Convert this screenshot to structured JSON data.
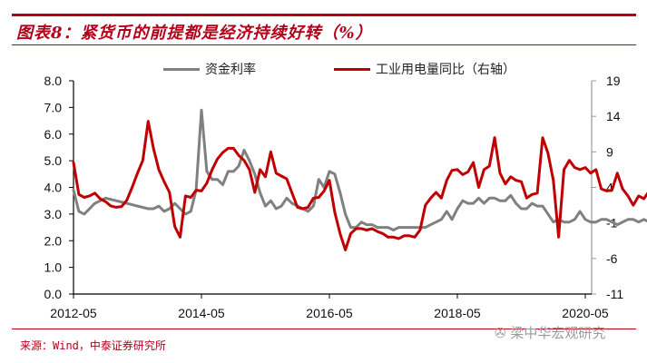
{
  "header": {
    "title": "图表8：紧货币的前提都是经济持续好转（%）"
  },
  "footer": {
    "source": "来源：Wind，中泰证券研究所",
    "watermark": "梁中华宏观研究"
  },
  "colors": {
    "brand": "#b3001b",
    "series_gray": "#808080",
    "series_red": "#c00000"
  },
  "chart_data": {
    "type": "line",
    "title": "紧货币的前提都是经济持续好转（%）",
    "xlabel": "",
    "x_ticks": [
      "2012-05",
      "2014-05",
      "2016-05",
      "2018-05",
      "2020-05"
    ],
    "x_start": "2012-05",
    "x_months": 96,
    "y_left": {
      "label": "",
      "ticks": [
        "8.0",
        "7.0",
        "6.0",
        "5.0",
        "4.0",
        "3.0",
        "2.0",
        "1.0",
        "0.0"
      ],
      "min": 0,
      "max": 8
    },
    "y_right": {
      "label": "右轴",
      "ticks": [
        "19",
        "14",
        "9",
        "4",
        "-1",
        "-6",
        "-11"
      ],
      "min": -11,
      "max": 19
    },
    "legend_position": "top",
    "grid": false,
    "series": [
      {
        "name": "资金利率",
        "axis": "left",
        "color": "#808080",
        "points": [
          [
            0,
            3.9
          ],
          [
            1,
            3.1
          ],
          [
            2,
            3.0
          ],
          [
            4,
            3.4
          ],
          [
            6,
            3.6
          ],
          [
            8,
            3.5
          ],
          [
            10,
            3.4
          ],
          [
            12,
            3.3
          ],
          [
            14,
            3.2
          ],
          [
            15,
            3.2
          ],
          [
            16,
            3.3
          ],
          [
            17,
            3.1
          ],
          [
            18,
            3.2
          ],
          [
            19,
            3.4
          ],
          [
            20,
            3.2
          ],
          [
            21,
            3.0
          ],
          [
            22,
            3.1
          ],
          [
            23,
            3.9
          ],
          [
            24,
            6.9
          ],
          [
            25,
            4.6
          ],
          [
            26,
            4.3
          ],
          [
            27,
            4.3
          ],
          [
            28,
            4.1
          ],
          [
            29,
            4.6
          ],
          [
            30,
            4.6
          ],
          [
            31,
            4.8
          ],
          [
            32,
            5.4
          ],
          [
            33,
            5.0
          ],
          [
            34,
            4.5
          ],
          [
            35,
            3.8
          ],
          [
            36,
            3.3
          ],
          [
            37,
            3.5
          ],
          [
            38,
            3.2
          ],
          [
            39,
            3.3
          ],
          [
            40,
            3.6
          ],
          [
            41,
            3.4
          ],
          [
            42,
            3.3
          ],
          [
            43,
            3.2
          ],
          [
            44,
            3.1
          ],
          [
            45,
            3.3
          ],
          [
            46,
            4.3
          ],
          [
            47,
            4.0
          ],
          [
            48,
            4.6
          ],
          [
            49,
            4.5
          ],
          [
            50,
            3.8
          ],
          [
            51,
            3.0
          ],
          [
            52,
            2.5
          ],
          [
            53,
            2.5
          ],
          [
            54,
            2.7
          ],
          [
            55,
            2.6
          ],
          [
            56,
            2.6
          ],
          [
            57,
            2.5
          ],
          [
            58,
            2.5
          ],
          [
            59,
            2.5
          ],
          [
            60,
            2.4
          ],
          [
            61,
            2.5
          ],
          [
            62,
            2.5
          ],
          [
            63,
            2.5
          ],
          [
            64,
            2.5
          ],
          [
            66,
            2.5
          ],
          [
            67,
            2.6
          ],
          [
            68,
            2.7
          ],
          [
            69,
            2.8
          ],
          [
            70,
            3.1
          ],
          [
            71,
            2.8
          ],
          [
            72,
            3.2
          ],
          [
            73,
            3.5
          ],
          [
            74,
            3.4
          ],
          [
            75,
            3.4
          ],
          [
            76,
            3.6
          ],
          [
            77,
            3.4
          ],
          [
            78,
            3.6
          ],
          [
            79,
            3.6
          ],
          [
            80,
            3.5
          ],
          [
            81,
            3.5
          ],
          [
            82,
            3.7
          ],
          [
            83,
            3.4
          ],
          [
            84,
            3.2
          ],
          [
            85,
            3.2
          ],
          [
            86,
            3.4
          ],
          [
            87,
            3.3
          ],
          [
            88,
            3.3
          ],
          [
            89,
            3.0
          ],
          [
            90,
            2.7
          ],
          [
            91,
            2.8
          ],
          [
            92,
            2.7
          ],
          [
            93,
            2.7
          ],
          [
            94,
            2.8
          ],
          [
            95,
            3.1
          ],
          [
            96,
            2.8
          ],
          [
            97,
            2.7
          ],
          [
            98,
            2.7
          ],
          [
            99,
            2.8
          ],
          [
            100,
            2.8
          ],
          [
            101,
            2.7
          ],
          [
            102,
            2.6
          ],
          [
            103,
            2.7
          ],
          [
            104,
            2.8
          ],
          [
            105,
            2.8
          ],
          [
            106,
            2.7
          ],
          [
            107,
            2.8
          ],
          [
            108,
            2.7
          ],
          [
            109,
            2.6
          ],
          [
            110,
            2.7
          ],
          [
            111,
            2.6
          ],
          [
            112,
            2.3
          ],
          [
            113,
            1.9
          ],
          [
            114,
            1.6
          ],
          [
            115,
            1.6
          ]
        ]
      },
      {
        "name": "工业用电量同比（右轴）",
        "axis": "right",
        "color": "#c00000",
        "points": [
          [
            0,
            7.5
          ],
          [
            1,
            3.0
          ],
          [
            2,
            2.6
          ],
          [
            3,
            2.8
          ],
          [
            4,
            3.2
          ],
          [
            5,
            2.4
          ],
          [
            6,
            2.0
          ],
          [
            7,
            1.4
          ],
          [
            8,
            1.2
          ],
          [
            9,
            1.3
          ],
          [
            10,
            2.2
          ],
          [
            11,
            4.0
          ],
          [
            12,
            6.0
          ],
          [
            13,
            7.8
          ],
          [
            14,
            13.3
          ],
          [
            15,
            9.5
          ],
          [
            16,
            6.5
          ],
          [
            17,
            4.8
          ],
          [
            18,
            3.3
          ],
          [
            19,
            -1.5
          ],
          [
            20,
            -3.0
          ],
          [
            21,
            2.8
          ],
          [
            22,
            2.6
          ],
          [
            23,
            3.6
          ],
          [
            24,
            3.5
          ],
          [
            25,
            4.6
          ],
          [
            26,
            6.5
          ],
          [
            27,
            8.0
          ],
          [
            28,
            8.9
          ],
          [
            29,
            9.5
          ],
          [
            30,
            9.5
          ],
          [
            31,
            8.5
          ],
          [
            32,
            7.8
          ],
          [
            33,
            6.5
          ],
          [
            34,
            3.3
          ],
          [
            35,
            6.5
          ],
          [
            36,
            5.5
          ],
          [
            37,
            9.0
          ],
          [
            38,
            6.0
          ],
          [
            39,
            5.6
          ],
          [
            40,
            5.2
          ],
          [
            41,
            3.2
          ],
          [
            42,
            1.2
          ],
          [
            43,
            1.0
          ],
          [
            44,
            1.2
          ],
          [
            45,
            2.5
          ],
          [
            46,
            2.6
          ],
          [
            47,
            3.5
          ],
          [
            48,
            5.0
          ],
          [
            49,
            0.5
          ],
          [
            50,
            -2.5
          ],
          [
            51,
            -4.8
          ],
          [
            52,
            -2.5
          ],
          [
            53,
            -1.8
          ],
          [
            54,
            -1.8
          ],
          [
            55,
            -2.0
          ],
          [
            56,
            -1.8
          ],
          [
            57,
            -2.2
          ],
          [
            58,
            -2.5
          ],
          [
            59,
            -3.0
          ],
          [
            60,
            -3.0
          ],
          [
            61,
            -3.2
          ],
          [
            62,
            -2.8
          ],
          [
            63,
            -2.8
          ],
          [
            64,
            -3.0
          ],
          [
            65,
            -2.0
          ],
          [
            66,
            1.5
          ],
          [
            67,
            2.5
          ],
          [
            68,
            3.3
          ],
          [
            69,
            2.5
          ],
          [
            70,
            5.0
          ],
          [
            71,
            6.4
          ],
          [
            72,
            6.5
          ],
          [
            73,
            5.8
          ],
          [
            74,
            6.2
          ],
          [
            75,
            7.5
          ],
          [
            76,
            4.0
          ],
          [
            77,
            6.5
          ],
          [
            78,
            7.0
          ],
          [
            79,
            11.0
          ],
          [
            80,
            6.0
          ],
          [
            81,
            4.5
          ],
          [
            82,
            5.5
          ],
          [
            83,
            5.0
          ],
          [
            84,
            4.8
          ],
          [
            85,
            2.5
          ],
          [
            86,
            3.0
          ],
          [
            87,
            3.2
          ],
          [
            88,
            11.0
          ],
          [
            89,
            8.8
          ],
          [
            90,
            5.0
          ],
          [
            91,
            -3.0
          ],
          [
            92,
            6.5
          ],
          [
            93,
            7.8
          ],
          [
            94,
            6.8
          ],
          [
            95,
            6.5
          ],
          [
            96,
            6.8
          ],
          [
            97,
            6.0
          ],
          [
            98,
            6.5
          ],
          [
            99,
            3.8
          ],
          [
            100,
            3.5
          ],
          [
            101,
            3.6
          ],
          [
            102,
            6.0
          ],
          [
            103,
            3.8
          ],
          [
            104,
            2.8
          ],
          [
            105,
            1.5
          ],
          [
            106,
            2.8
          ],
          [
            107,
            2.4
          ],
          [
            108,
            3.5
          ],
          [
            109,
            3.2
          ],
          [
            110,
            7.8
          ],
          [
            111,
            2.0
          ],
          [
            112,
            -6.0
          ],
          [
            113,
            -10.0
          ],
          [
            114,
            -5.0
          ]
        ]
      }
    ]
  }
}
